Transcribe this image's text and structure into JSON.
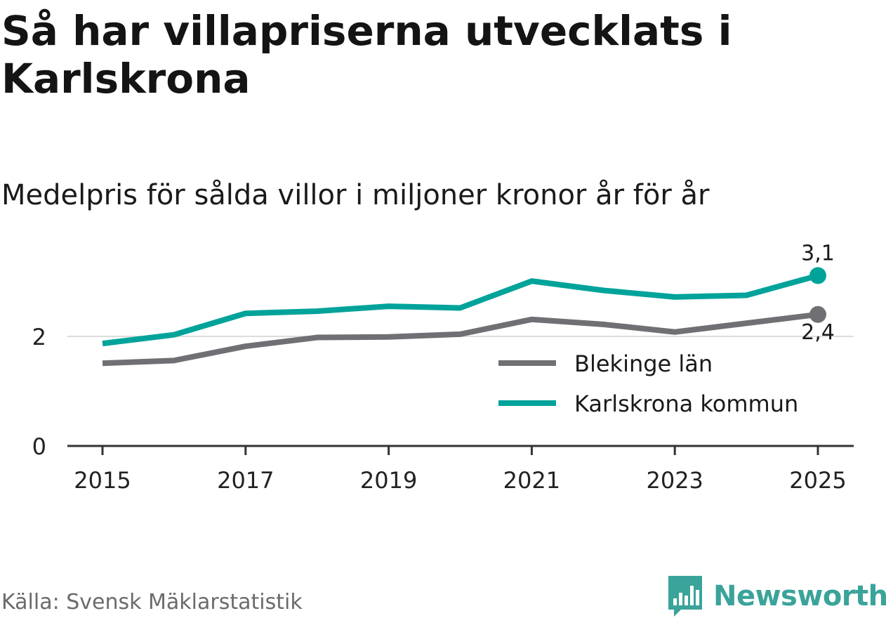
{
  "header": {
    "title": "Så har villapriserna utvecklats i Karlskrona",
    "subtitle": "Medelpris för sålda villor i miljoner kronor år för år"
  },
  "footer": {
    "source": "Källa: Svensk Mäklarstatistik",
    "brand": "Newsworthy",
    "brand_icon": "bar-chart-speech-bubble-icon"
  },
  "colors": {
    "blekinge": "#707074",
    "karlskrona": "#00a39a",
    "grid": "#dddddd",
    "axis": "#333333",
    "brand": "#3aa39a"
  },
  "chart_data": {
    "type": "line",
    "x": [
      2015,
      2016,
      2017,
      2018,
      2019,
      2020,
      2021,
      2022,
      2023,
      2024,
      2025
    ],
    "x_tick_labels": [
      "2015",
      "2017",
      "2019",
      "2021",
      "2023",
      "2025"
    ],
    "x_ticks": [
      2015,
      2017,
      2019,
      2021,
      2023,
      2025
    ],
    "y_ticks": [
      0,
      2
    ],
    "y_tick_labels": [
      "0",
      "2"
    ],
    "ylim": [
      0,
      3.4
    ],
    "grid": true,
    "legend_position": "bottom-right",
    "series": [
      {
        "name": "Blekinge län",
        "color_key": "blekinge",
        "values": [
          1.51,
          1.56,
          1.82,
          1.98,
          1.99,
          2.04,
          2.31,
          2.22,
          2.08,
          2.24,
          2.4
        ],
        "end_label": "2,4"
      },
      {
        "name": "Karlskrona kommun",
        "color_key": "karlskrona",
        "values": [
          1.87,
          2.03,
          2.42,
          2.46,
          2.55,
          2.52,
          3.01,
          2.84,
          2.72,
          2.75,
          3.11
        ],
        "end_label": "3,1"
      }
    ]
  }
}
